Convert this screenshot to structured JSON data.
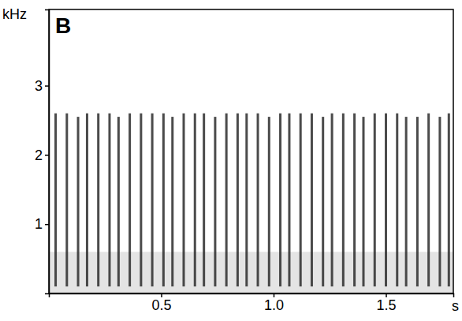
{
  "chart_data": {
    "type": "spectrogram",
    "title": "B",
    "x_label": "s",
    "y_label": "kHz",
    "xlim": [
      0,
      1.8
    ],
    "xticks": [
      0.5,
      {
        "value": 1,
        "label": "1.0"
      },
      1.5
    ],
    "ylim": [
      0,
      4.1
    ],
    "yticks": [
      1,
      2,
      3
    ],
    "color": "#2b2b2b",
    "noise_band": [
      0,
      0.6
    ],
    "x": [
      0.03,
      0.08,
      0.13,
      0.17,
      0.22,
      0.27,
      0.31,
      0.36,
      0.41,
      0.46,
      0.51,
      0.55,
      0.6,
      0.65,
      0.69,
      0.74,
      0.79,
      0.84,
      0.88,
      0.93,
      0.98,
      1.03,
      1.07,
      1.12,
      1.17,
      1.22,
      1.26,
      1.31,
      1.36,
      1.4,
      1.45,
      1.5,
      1.55,
      1.59,
      1.64,
      1.69,
      1.74,
      1.78
    ],
    "low": [
      0.1,
      0.1,
      0.1,
      0.1,
      0.1,
      0.1,
      0.1,
      0.1,
      0.1,
      0.1,
      0.1,
      0.1,
      0.1,
      0.1,
      0.1,
      0.1,
      0.1,
      0.1,
      0.1,
      0.1,
      0.1,
      0.1,
      0.1,
      0.1,
      0.1,
      0.1,
      0.1,
      0.1,
      0.1,
      0.1,
      0.1,
      0.1,
      0.1,
      0.1,
      0.1,
      0.1,
      0.1,
      0.1
    ],
    "values": [
      2.6,
      2.6,
      2.55,
      2.6,
      2.6,
      2.6,
      2.55,
      2.6,
      2.6,
      2.6,
      2.6,
      2.55,
      2.6,
      2.6,
      2.6,
      2.55,
      2.6,
      2.6,
      2.6,
      2.6,
      2.55,
      2.6,
      2.6,
      2.6,
      2.6,
      2.55,
      2.6,
      2.6,
      2.6,
      2.55,
      2.6,
      2.6,
      2.6,
      2.55,
      2.55,
      2.6,
      2.55,
      2.6
    ]
  }
}
